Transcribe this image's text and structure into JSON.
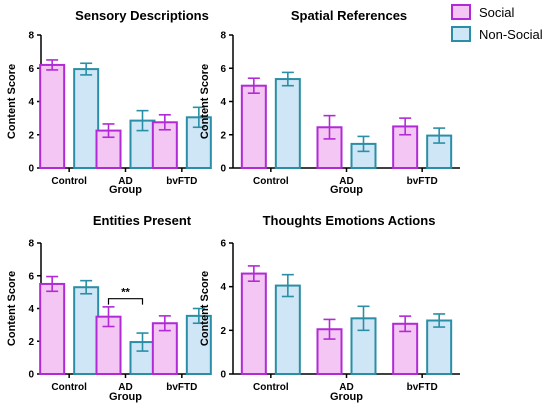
{
  "legend": [
    {
      "label": "Social",
      "fill": "#f4c6f4",
      "stroke": "#b22ad6"
    },
    {
      "label": "Non-Social",
      "fill": "#cfe6f6",
      "stroke": "#2a8fa6"
    }
  ],
  "chart_data": [
    {
      "type": "bar",
      "title": "Sensory Descriptions",
      "xlabel": "Group",
      "ylabel": "Content Score",
      "ylim": [
        0,
        8
      ],
      "yticks": [
        0,
        2,
        4,
        6,
        8
      ],
      "categories": [
        "Control",
        "AD",
        "bvFTD"
      ],
      "series": [
        {
          "name": "Social",
          "values": [
            6.2,
            2.25,
            2.75
          ],
          "errors": [
            0.3,
            0.4,
            0.45
          ]
        },
        {
          "name": "Non-Social",
          "values": [
            5.95,
            2.85,
            3.05
          ],
          "errors": [
            0.35,
            0.6,
            0.6
          ]
        }
      ],
      "annotations": []
    },
    {
      "type": "bar",
      "title": "Spatial References",
      "xlabel": "Group",
      "ylabel": "Content Score",
      "ylim": [
        0,
        8
      ],
      "yticks": [
        0,
        2,
        4,
        6,
        8
      ],
      "categories": [
        "Control",
        "AD",
        "bvFTD"
      ],
      "series": [
        {
          "name": "Social",
          "values": [
            4.95,
            2.45,
            2.5
          ],
          "errors": [
            0.45,
            0.7,
            0.5
          ]
        },
        {
          "name": "Non-Social",
          "values": [
            5.35,
            1.45,
            1.95
          ],
          "errors": [
            0.4,
            0.45,
            0.45
          ]
        }
      ],
      "annotations": []
    },
    {
      "type": "bar",
      "title": "Entities Present",
      "xlabel": "Group",
      "ylabel": "Content Score",
      "ylim": [
        0,
        8
      ],
      "yticks": [
        0,
        2,
        4,
        6,
        8
      ],
      "categories": [
        "Control",
        "AD",
        "bvFTD"
      ],
      "series": [
        {
          "name": "Social",
          "values": [
            5.5,
            3.5,
            3.1
          ],
          "errors": [
            0.45,
            0.6,
            0.45
          ]
        },
        {
          "name": "Non-Social",
          "values": [
            5.3,
            1.95,
            3.55
          ],
          "errors": [
            0.4,
            0.55,
            0.45
          ]
        }
      ],
      "annotations": [
        {
          "text": "**",
          "between": [
            "AD.Social",
            "AD.Non-Social"
          ],
          "y": 4.6
        }
      ]
    },
    {
      "type": "bar",
      "title": "Thoughts Emotions Actions",
      "xlabel": "Group",
      "ylabel": "Content Score",
      "ylim": [
        0,
        6
      ],
      "yticks": [
        0,
        2,
        4,
        6
      ],
      "categories": [
        "Control",
        "AD",
        "bvFTD"
      ],
      "series": [
        {
          "name": "Social",
          "values": [
            4.6,
            2.05,
            2.3
          ],
          "errors": [
            0.35,
            0.45,
            0.35
          ]
        },
        {
          "name": "Non-Social",
          "values": [
            4.05,
            2.55,
            2.45
          ],
          "errors": [
            0.5,
            0.55,
            0.3
          ]
        }
      ],
      "annotations": []
    }
  ]
}
